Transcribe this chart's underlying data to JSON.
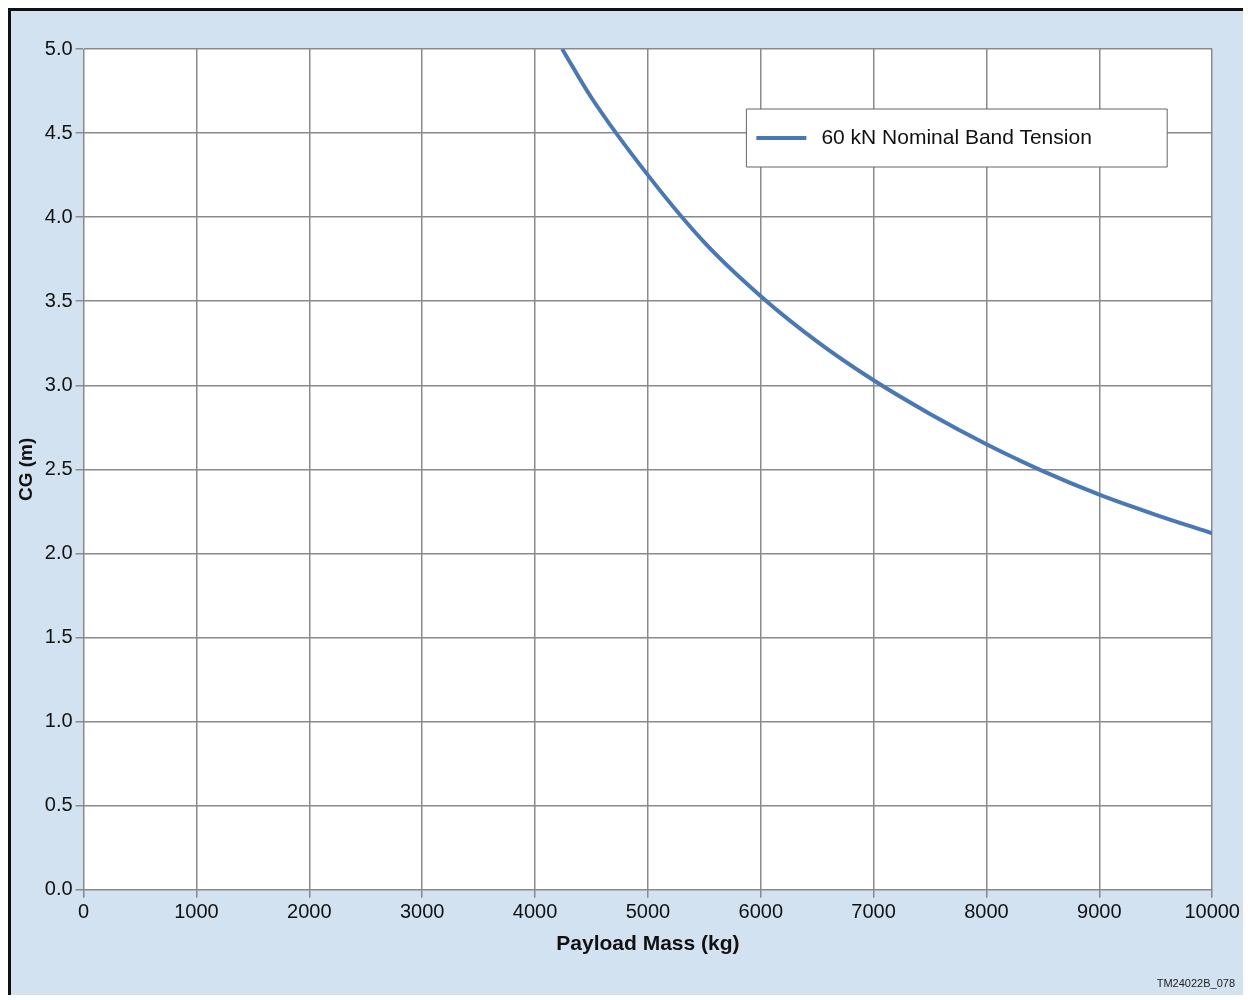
{
  "chart_data": {
    "type": "line",
    "xlabel": "Payload Mass (kg)",
    "ylabel": "CG (m)",
    "x": [
      4240,
      4500,
      5000,
      5500,
      6000,
      6500,
      7000,
      7500,
      8000,
      8500,
      9000,
      9500,
      10000
    ],
    "series": [
      {
        "name": "60 kN Nominal Band Tension",
        "color": "#4a78b5",
        "values": [
          5.0,
          4.71,
          4.25,
          3.85,
          3.53,
          3.26,
          3.03,
          2.83,
          2.65,
          2.49,
          2.35,
          2.23,
          2.12
        ]
      }
    ],
    "xlim": [
      0,
      10000
    ],
    "xticks": [
      0,
      1000,
      2000,
      3000,
      4000,
      5000,
      6000,
      7000,
      8000,
      9000,
      10000
    ],
    "ylim": [
      0,
      5
    ],
    "yticks": [
      {
        "value": 0,
        "label": "0.0"
      },
      {
        "value": 0.5,
        "label": "0.5"
      },
      {
        "value": 1,
        "label": "1.0"
      },
      {
        "value": 1.5,
        "label": "1.5"
      },
      {
        "value": 2,
        "label": "2.0"
      },
      {
        "value": 2.5,
        "label": "2.5"
      },
      {
        "value": 3,
        "label": "3.0"
      },
      {
        "value": 3.5,
        "label": "3.5"
      },
      {
        "value": 4,
        "label": "4.0"
      },
      {
        "value": 4.5,
        "label": "4.5"
      },
      {
        "value": 5,
        "label": "5.0"
      }
    ],
    "grid": true,
    "legend": "top right",
    "marker": "none",
    "line_style": "solid",
    "annotations": [
      "TM24022B_078"
    ]
  }
}
